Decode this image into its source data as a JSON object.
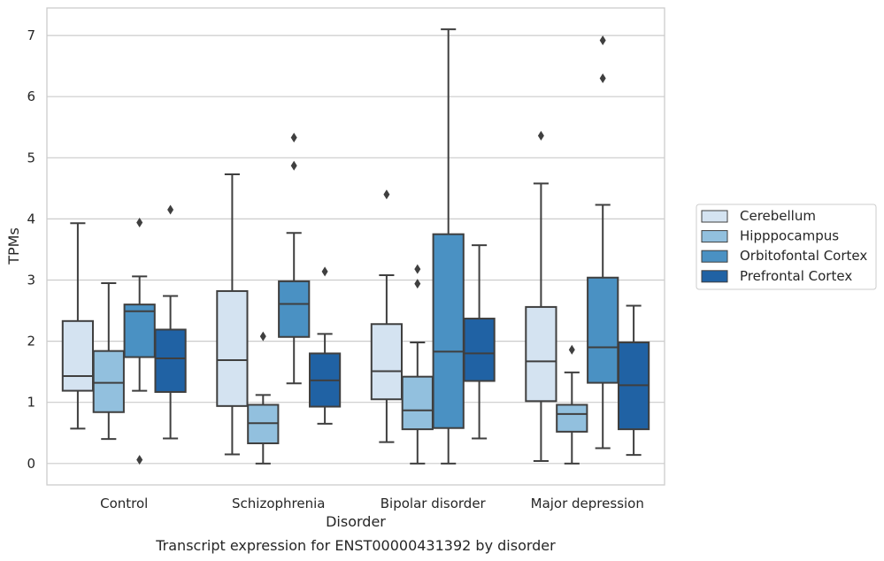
{
  "chart_data": {
    "type": "box",
    "caption": "Transcript expression for ENST00000431392 by disorder",
    "xlabel": "Disorder",
    "ylabel": "TPMs",
    "ylim": [
      -0.35,
      7.45
    ],
    "yticks": [
      0,
      1,
      2,
      3,
      4,
      5,
      6,
      7
    ],
    "grid": true,
    "legend_position": "right",
    "categories": [
      "Control",
      "Schizophrenia",
      "Bipolar disorder",
      "Major depression"
    ],
    "series": [
      {
        "name": "Cerebellum",
        "color": "#d4e3f1",
        "boxes": [
          {
            "whislo": 0.57,
            "q1": 1.19,
            "med": 1.43,
            "q3": 2.33,
            "whishi": 3.93,
            "fliers": []
          },
          {
            "whislo": 0.15,
            "q1": 0.94,
            "med": 1.69,
            "q3": 2.82,
            "whishi": 4.73,
            "fliers": []
          },
          {
            "whislo": 0.35,
            "q1": 1.05,
            "med": 1.51,
            "q3": 2.28,
            "whishi": 3.08,
            "fliers": [
              4.4
            ]
          },
          {
            "whislo": 0.04,
            "q1": 1.02,
            "med": 1.67,
            "q3": 2.56,
            "whishi": 4.58,
            "fliers": [
              5.36
            ]
          }
        ]
      },
      {
        "name": "Hipppocampus",
        "color": "#92c0de",
        "boxes": [
          {
            "whislo": 0.4,
            "q1": 0.84,
            "med": 1.32,
            "q3": 1.84,
            "whishi": 2.95,
            "fliers": []
          },
          {
            "whislo": 0.0,
            "q1": 0.33,
            "med": 0.66,
            "q3": 0.96,
            "whishi": 1.12,
            "fliers": [
              2.08
            ]
          },
          {
            "whislo": 0.0,
            "q1": 0.56,
            "med": 0.87,
            "q3": 1.42,
            "whishi": 1.98,
            "fliers": [
              2.94,
              3.18
            ]
          },
          {
            "whislo": 0.0,
            "q1": 0.52,
            "med": 0.81,
            "q3": 0.96,
            "whishi": 1.49,
            "fliers": [
              1.86
            ]
          }
        ]
      },
      {
        "name": "Orbitofontal Cortex",
        "color": "#4a91c3",
        "boxes": [
          {
            "whislo": 1.19,
            "q1": 1.74,
            "med": 2.49,
            "q3": 2.6,
            "whishi": 3.06,
            "fliers": [
              0.06,
              3.94
            ]
          },
          {
            "whislo": 1.31,
            "q1": 2.07,
            "med": 2.61,
            "q3": 2.98,
            "whishi": 3.77,
            "fliers": [
              4.87,
              5.33
            ]
          },
          {
            "whislo": 0.0,
            "q1": 0.58,
            "med": 1.83,
            "q3": 3.75,
            "whishi": 7.1,
            "fliers": []
          },
          {
            "whislo": 0.25,
            "q1": 1.32,
            "med": 1.9,
            "q3": 3.04,
            "whishi": 4.23,
            "fliers": [
              6.3,
              6.92
            ]
          }
        ]
      },
      {
        "name": "Prefrontal Cortex",
        "color": "#2062a4",
        "boxes": [
          {
            "whislo": 0.41,
            "q1": 1.17,
            "med": 1.72,
            "q3": 2.19,
            "whishi": 2.74,
            "fliers": [
              4.15
            ]
          },
          {
            "whislo": 0.65,
            "q1": 0.93,
            "med": 1.36,
            "q3": 1.8,
            "whishi": 2.12,
            "fliers": [
              3.14
            ]
          },
          {
            "whislo": 0.41,
            "q1": 1.35,
            "med": 1.8,
            "q3": 2.37,
            "whishi": 3.57,
            "fliers": []
          },
          {
            "whislo": 0.14,
            "q1": 0.56,
            "med": 1.28,
            "q3": 1.98,
            "whishi": 2.58,
            "fliers": []
          }
        ]
      }
    ]
  }
}
